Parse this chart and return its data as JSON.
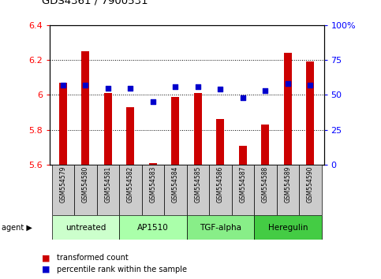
{
  "title": "GDS4361 / 7900531",
  "samples": [
    "GSM554579",
    "GSM554580",
    "GSM554581",
    "GSM554582",
    "GSM554583",
    "GSM554584",
    "GSM554585",
    "GSM554586",
    "GSM554587",
    "GSM554588",
    "GSM554589",
    "GSM554590"
  ],
  "red_values": [
    6.07,
    6.25,
    6.01,
    5.93,
    5.61,
    5.99,
    6.01,
    5.86,
    5.71,
    5.83,
    6.24,
    6.19
  ],
  "blue_values": [
    57,
    57,
    55,
    55,
    45,
    56,
    56,
    54,
    48,
    53,
    58,
    57
  ],
  "ylim_left": [
    5.6,
    6.4
  ],
  "ylim_right": [
    0,
    100
  ],
  "yticks_left": [
    5.6,
    5.8,
    6.0,
    6.2,
    6.4
  ],
  "ytick_labels_left": [
    "5.6",
    "5.8",
    "6",
    "6.2",
    "6.4"
  ],
  "yticks_right": [
    0,
    25,
    50,
    75,
    100
  ],
  "ytick_labels_right": [
    "0",
    "25",
    "50",
    "75",
    "100%"
  ],
  "groups": [
    {
      "label": "untreated",
      "start": 0,
      "end": 3,
      "color": "#ccffcc"
    },
    {
      "label": "AP1510",
      "start": 3,
      "end": 6,
      "color": "#aaffaa"
    },
    {
      "label": "TGF-alpha",
      "start": 6,
      "end": 9,
      "color": "#88ee88"
    },
    {
      "label": "Heregulin",
      "start": 9,
      "end": 12,
      "color": "#44cc44"
    }
  ],
  "bar_color": "#cc0000",
  "dot_color": "#0000cc",
  "bar_width": 0.35,
  "legend_red_label": "transformed count",
  "legend_blue_label": "percentile rank within the sample",
  "sample_box_color": "#cccccc",
  "fig_width": 4.83,
  "fig_height": 3.54,
  "dpi": 100
}
